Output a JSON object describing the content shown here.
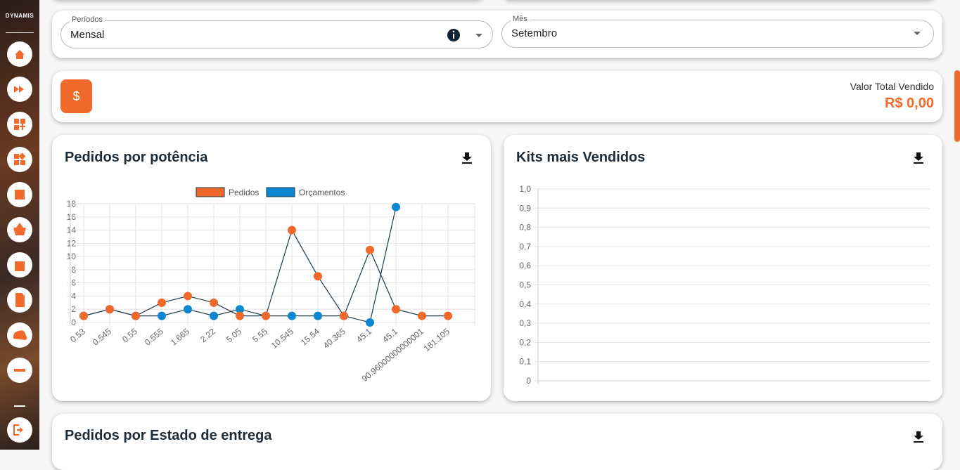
{
  "sidebar": {
    "logo": "DYNAMIS"
  },
  "filters": [
    {
      "label": "Períodos",
      "value": "Mensal"
    },
    {
      "label": "Mês",
      "value": "Setembro"
    }
  ],
  "summary": {
    "icon": "$",
    "label": "Valor Total Vendido",
    "value": "R$ 0,00"
  },
  "bottom_card": {
    "title": "Pedidos por Estado de entrega"
  },
  "chart_data": [
    {
      "type": "line",
      "title": "Pedidos por potência",
      "line_color": "#1e3a48",
      "grid": true,
      "categories": [
        "0.53",
        "0.545",
        "0.55",
        "0.555",
        "1.665",
        "2.22",
        "5.05",
        "5.55",
        "10.545",
        "15.54",
        "40.365",
        "45.1",
        "45.1",
        "90.96000000000001",
        "181.105"
      ],
      "series": [
        {
          "name": "Pedidos",
          "color": "#f0692b",
          "values": [
            1,
            2,
            1,
            3,
            4,
            3,
            1,
            1,
            14,
            7,
            1,
            11,
            2,
            1,
            1
          ]
        },
        {
          "name": "Orçamentos",
          "color": "#0b88d0",
          "values": [
            1,
            2,
            1,
            1,
            2,
            1,
            2,
            1,
            1,
            1,
            1,
            0,
            17.5,
            null,
            null
          ]
        }
      ],
      "ylim": [
        0,
        18
      ],
      "yticks": [
        0,
        2,
        4,
        6,
        8,
        10,
        12,
        14,
        16,
        18
      ]
    },
    {
      "type": "bar",
      "title": "Kits mais Vendidos",
      "grid": true,
      "ylim": [
        0,
        1
      ],
      "yticks": [
        0,
        {
          "value": 0.1,
          "label": "0,1"
        },
        {
          "value": 0.2,
          "label": "0,2"
        },
        {
          "value": 0.3,
          "label": "0,3"
        },
        {
          "value": 0.4,
          "label": "0,4"
        },
        {
          "value": 0.5,
          "label": "0,5"
        },
        {
          "value": 0.6,
          "label": "0,6"
        },
        {
          "value": 0.7,
          "label": "0,7"
        },
        {
          "value": 0.8,
          "label": "0,8"
        },
        {
          "value": 0.9,
          "label": "0,9"
        },
        {
          "value": 1,
          "label": "1,0"
        }
      ]
    }
  ]
}
